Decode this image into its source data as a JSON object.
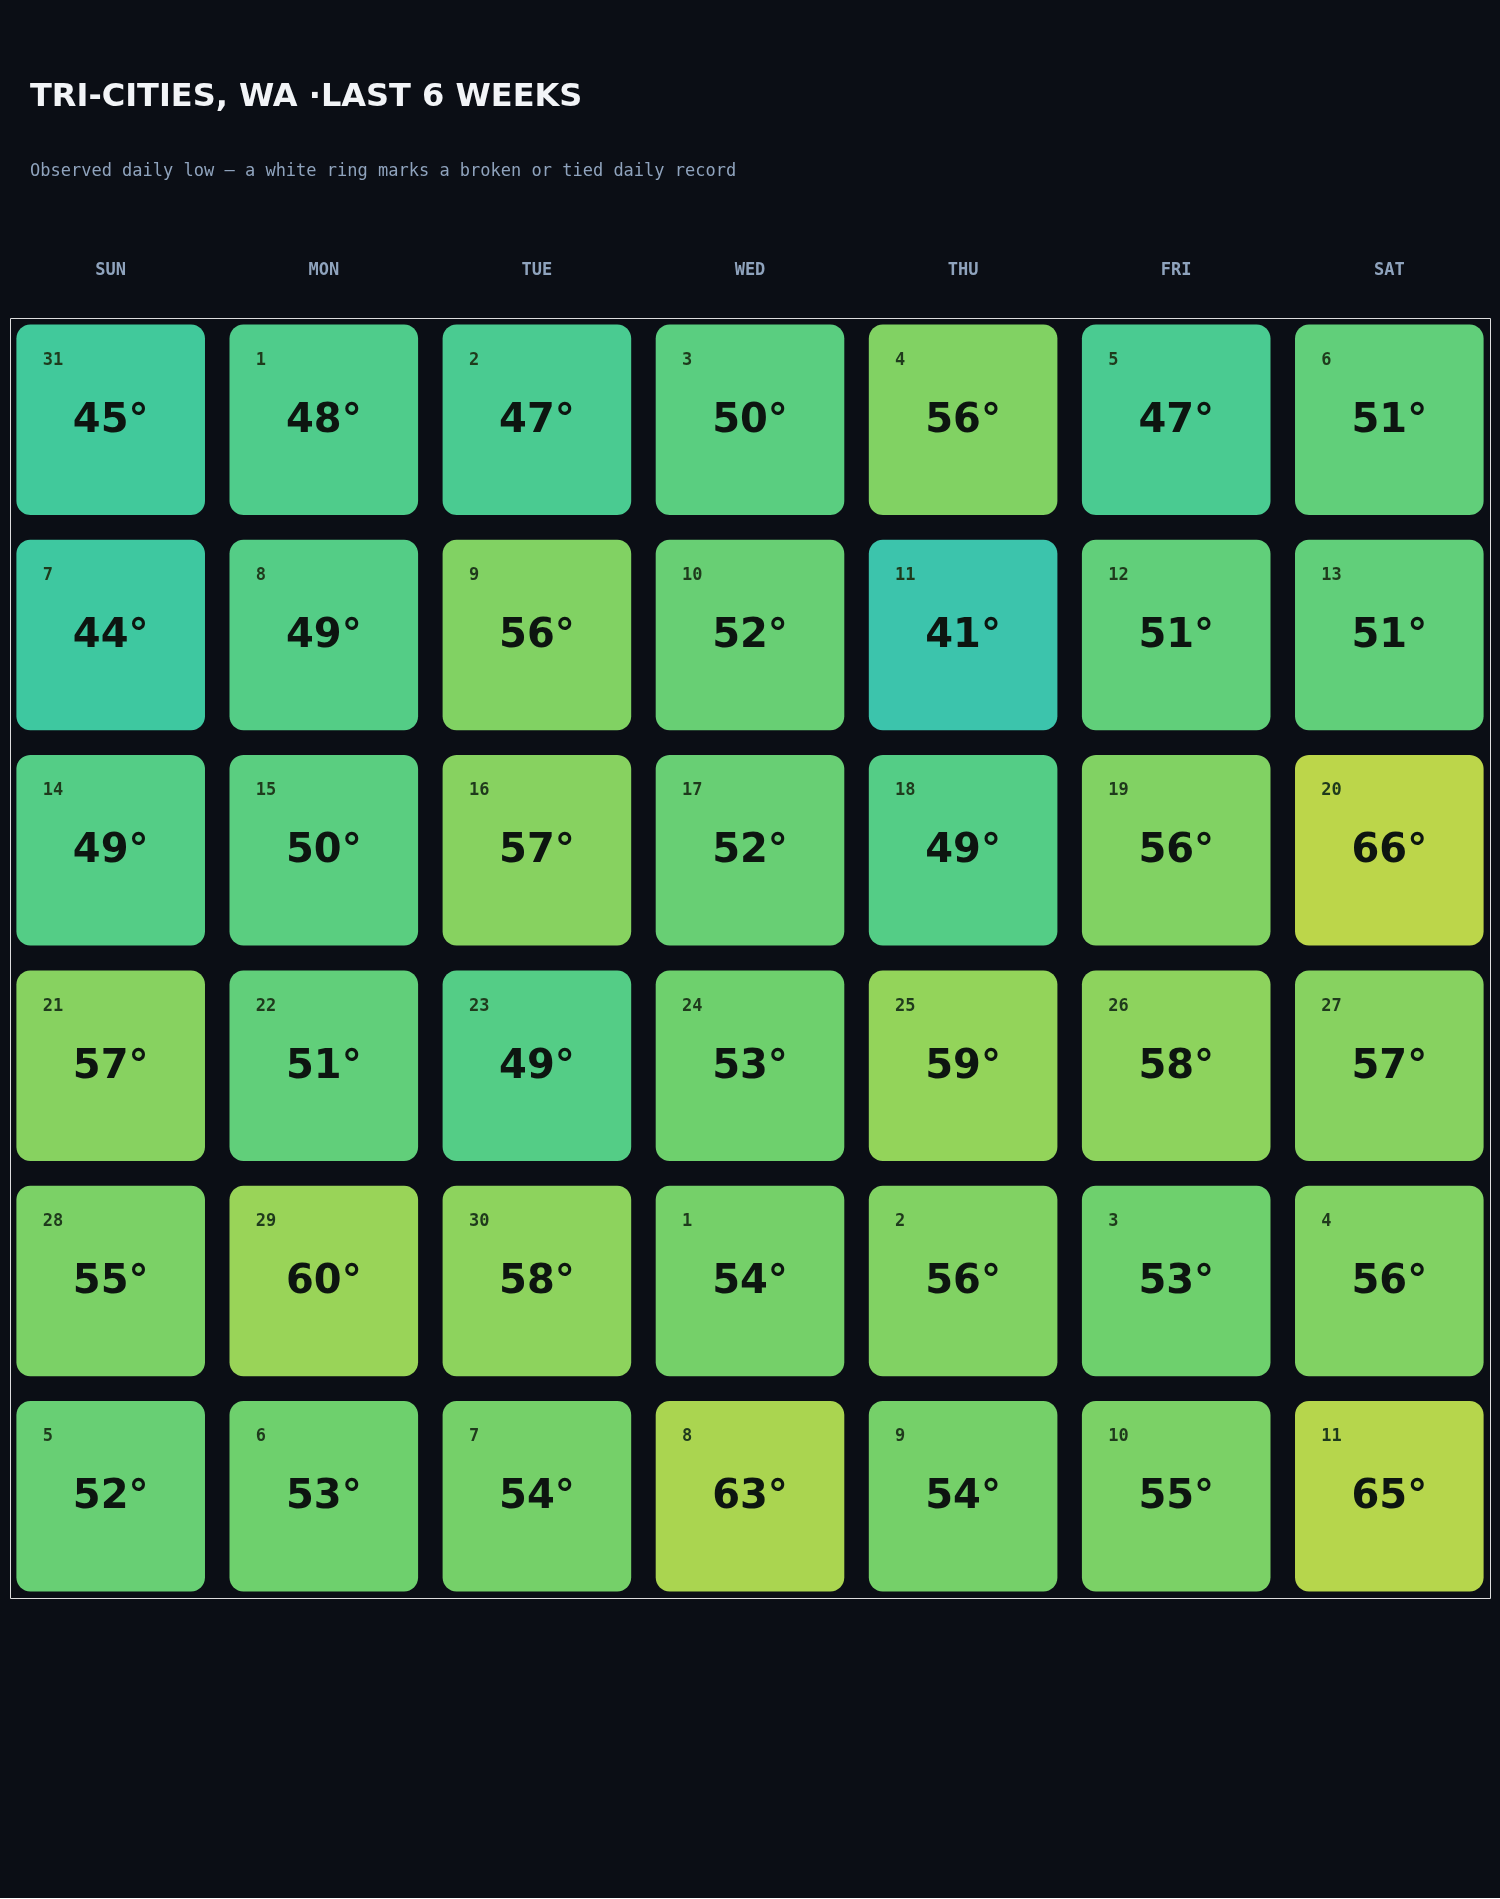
{
  "chart_data": {
    "type": "heatmap",
    "title": "TRI-CITIES, WA ·LAST 6 WEEKS",
    "subtitle": "Observed daily low — a white ring marks a broken or tied daily record",
    "categories": [
      "SUN",
      "MON",
      "TUE",
      "WED",
      "THU",
      "FRI",
      "SAT"
    ],
    "y_categories": [
      null,
      null,
      null,
      null,
      null,
      null
    ],
    "cells": [
      [
        45,
        48,
        47,
        50,
        56,
        47,
        51
      ],
      [
        44,
        49,
        56,
        52,
        41,
        51,
        51
      ],
      [
        49,
        50,
        57,
        52,
        49,
        56,
        66
      ],
      [
        57,
        51,
        49,
        53,
        59,
        58,
        57
      ],
      [
        55,
        60,
        58,
        54,
        56,
        53,
        56
      ],
      [
        52,
        53,
        54,
        63,
        54,
        55,
        65
      ]
    ],
    "cell_labels": [
      [
        "45°",
        "48°",
        "47°",
        "50°",
        "56°",
        "47°",
        "51°"
      ],
      [
        "44°",
        "49°",
        "56°",
        "52°",
        "41°",
        "51°",
        "51°"
      ],
      [
        "49°",
        "50°",
        "57°",
        "52°",
        "49°",
        "56°",
        "66°"
      ],
      [
        "57°",
        "51°",
        "49°",
        "53°",
        "59°",
        "58°",
        "57°"
      ],
      [
        "55°",
        "60°",
        "58°",
        "54°",
        "56°",
        "53°",
        "56°"
      ],
      [
        "52°",
        "53°",
        "54°",
        "63°",
        "54°",
        "55°",
        "65°"
      ]
    ],
    "annotations": [
      "31",
      "1",
      "2",
      "3",
      "4",
      "5",
      "6",
      "7",
      "8",
      "9",
      "10",
      "11",
      "12",
      "13",
      "14",
      "15",
      "16",
      "17",
      "18",
      "19",
      "20",
      "21",
      "22",
      "23",
      "24",
      "25",
      "26",
      "27",
      "28",
      "29",
      "30",
      "1",
      "2",
      "3",
      "4",
      "5",
      "6",
      "7",
      "8",
      "9",
      "10",
      "11"
    ]
  }
}
